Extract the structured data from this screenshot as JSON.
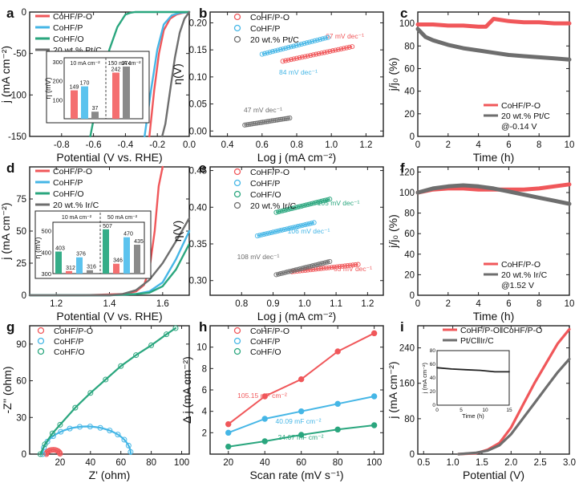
{
  "colors": {
    "red": "#f0575a",
    "blue": "#45b6e6",
    "green": "#2aa67e",
    "gray": "#6e6e6e",
    "axis": "#222222",
    "inset_red": "#f46f70",
    "inset_blue": "#5cc3ee",
    "inset_green": "#35ad88",
    "inset_gray": "#8a8a8a"
  },
  "chart_data": [
    {
      "panel": "a",
      "type": "line",
      "xlabel": "Potential (V vs. RHE)",
      "ylabel": "j (mA cm⁻²)",
      "xlim": [
        -1.0,
        0.0
      ],
      "ylim": [
        -150,
        0
      ],
      "xticks": [
        -0.8,
        -0.6,
        -0.4,
        -0.2,
        0.0
      ],
      "yticks": [
        0,
        -50,
        -100,
        -150
      ],
      "xtick_labels": [
        "-0.8",
        "-0.6",
        "-0.4",
        "-0.2",
        "0.0"
      ],
      "ytick_labels": [
        "0",
        "-50",
        "-100",
        "-150"
      ],
      "legend": [
        "CoHF/P-O",
        "CoHF/P",
        "CoHF/O",
        "20 wt.% Pt/C"
      ],
      "series": [
        {
          "name": "CoHF/P-O",
          "color": "red",
          "x": [
            0.0,
            -0.04,
            -0.08,
            -0.12,
            -0.16,
            -0.19,
            -0.22,
            -0.25
          ],
          "y": [
            0,
            -1,
            -3,
            -8,
            -22,
            -50,
            -95,
            -150
          ]
        },
        {
          "name": "CoHF/P",
          "color": "blue",
          "x": [
            0.0,
            -0.06,
            -0.11,
            -0.16,
            -0.2,
            -0.24,
            -0.28
          ],
          "y": [
            0,
            -1,
            -4,
            -15,
            -45,
            -95,
            -150
          ]
        },
        {
          "name": "CoHF/O",
          "color": "green",
          "x": [
            0.0,
            -0.05,
            -0.1,
            -0.15,
            -0.2,
            -0.25,
            -0.28,
            -0.31,
            -0.34,
            -0.37,
            -0.4,
            -0.45,
            -0.5,
            -0.55,
            -0.6,
            -0.62
          ],
          "y": [
            0,
            0,
            0,
            0,
            0,
            0,
            0,
            0,
            0,
            -1,
            -3,
            -18,
            -45,
            -85,
            -130,
            -150
          ]
        },
        {
          "name": "20 wt.% Pt/C",
          "color": "gray",
          "x": [
            0.0,
            -0.03,
            -0.06,
            -0.09,
            -0.12,
            -0.15,
            -0.17
          ],
          "y": [
            0,
            -8,
            -25,
            -55,
            -95,
            -135,
            -150
          ]
        }
      ],
      "inset": {
        "ylabel": "η (mV)",
        "yticks": [
          0,
          100,
          200,
          300
        ],
        "ytick_labels": [
          "",
          "100",
          "200",
          "300"
        ],
        "ylim": [
          0,
          320
        ],
        "groups": [
          {
            "label": "10 mA cm⁻²",
            "values": [
              149,
              170,
              37
            ],
            "colors": [
              "inset_red",
              "inset_blue",
              "inset_gray"
            ],
            "value_labels": [
              "149",
              "170",
              "37"
            ]
          },
          {
            "label": "150 mA cm⁻²",
            "values": [
              242,
              274
            ],
            "colors": [
              "inset_red",
              "inset_gray"
            ],
            "value_labels": [
              "242",
              "274"
            ]
          }
        ]
      }
    },
    {
      "panel": "b",
      "type": "scatter",
      "xlabel": "Log j (mA cm⁻²)",
      "ylabel": "η(V)",
      "xlim": [
        0.3,
        1.3
      ],
      "ylim": [
        -0.01,
        0.22
      ],
      "xticks": [
        0.4,
        0.6,
        0.8,
        1.0,
        1.2
      ],
      "yticks": [
        0.0,
        0.05,
        0.1,
        0.15,
        0.2
      ],
      "xtick_labels": [
        "0.4",
        "0.6",
        "0.8",
        "1.0",
        "1.2"
      ],
      "ytick_labels": [
        "0.00",
        "0.05",
        "0.10",
        "0.15",
        "0.20"
      ],
      "legend": [
        "CoHF/P-O",
        "CoHF/P",
        "20 wt.% Pt/C"
      ],
      "series": [
        {
          "name": "CoHF/P-O",
          "color": "red",
          "x_range": [
            0.72,
            1.12
          ],
          "y_range": [
            0.129,
            0.156
          ],
          "tafel": "67 mV dec⁻¹"
        },
        {
          "name": "CoHF/P",
          "color": "blue",
          "x_range": [
            0.6,
            0.98
          ],
          "y_range": [
            0.142,
            0.173
          ],
          "tafel": "84 mV dec⁻¹"
        },
        {
          "name": "20 wt.% Pt/C",
          "color": "gray",
          "x_range": [
            0.5,
            0.76
          ],
          "y_range": [
            0.011,
            0.024
          ],
          "tafel": "47 mV dec⁻¹"
        }
      ]
    },
    {
      "panel": "c",
      "type": "line",
      "xlabel": "Time (h)",
      "ylabel": "j/j₀ (%)",
      "xlim": [
        0,
        10
      ],
      "ylim": [
        0,
        110
      ],
      "xticks": [
        0,
        2,
        4,
        6,
        8,
        10
      ],
      "yticks": [
        0,
        20,
        40,
        60,
        80,
        100
      ],
      "xtick_labels": [
        "0",
        "2",
        "4",
        "6",
        "8",
        "10"
      ],
      "ytick_labels": [
        "0",
        "20",
        "40",
        "60",
        "80",
        "100"
      ],
      "legend": [
        "CoHF/P-O",
        "20 wt.% Pt/C"
      ],
      "note": "@-0.14 V",
      "series": [
        {
          "name": "CoHF/P-O",
          "color": "red",
          "x": [
            0,
            1,
            2,
            3,
            4,
            4.5,
            5,
            6,
            7,
            8,
            9,
            10
          ],
          "y": [
            99,
            99,
            98,
            98,
            97,
            97,
            104,
            102,
            101,
            101,
            100,
            100
          ]
        },
        {
          "name": "20 wt.% Pt/C",
          "color": "gray",
          "x": [
            0,
            0.5,
            1,
            2,
            3,
            4,
            5,
            6,
            7,
            8,
            9,
            10
          ],
          "y": [
            95,
            88,
            85,
            81,
            78,
            76,
            74,
            72,
            71,
            70,
            69,
            68
          ]
        }
      ]
    },
    {
      "panel": "d",
      "type": "line",
      "xlabel": "Potential (V vs. RHE)",
      "ylabel": "j (mA cm⁻²)",
      "xlim": [
        1.1,
        1.7
      ],
      "ylim": [
        0,
        100
      ],
      "xticks": [
        1.2,
        1.4,
        1.6
      ],
      "yticks": [
        0,
        25,
        50,
        75
      ],
      "xtick_labels": [
        "1.2",
        "1.4",
        "1.6"
      ],
      "ytick_labels": [
        "0",
        "25",
        "50",
        "75"
      ],
      "legend": [
        "CoHF/P-O",
        "CoHF/P",
        "CoHF/O",
        "20 wt.% Ir/C"
      ],
      "series": [
        {
          "name": "CoHF/P-O",
          "color": "red",
          "x": [
            1.1,
            1.3,
            1.45,
            1.5,
            1.53,
            1.55,
            1.57,
            1.585,
            1.6
          ],
          "y": [
            0,
            0,
            1,
            3,
            8,
            20,
            50,
            85,
            100
          ]
        },
        {
          "name": "CoHF/P",
          "color": "blue",
          "x": [
            1.1,
            1.4,
            1.5,
            1.55,
            1.6,
            1.65,
            1.7
          ],
          "y": [
            0,
            0,
            1,
            3,
            10,
            28,
            50
          ]
        },
        {
          "name": "CoHF/O",
          "color": "green",
          "x": [
            1.1,
            1.4,
            1.5,
            1.55,
            1.6,
            1.65,
            1.7
          ],
          "y": [
            0,
            0,
            1,
            2,
            7,
            20,
            40
          ]
        },
        {
          "name": "20 wt.% Ir/C",
          "color": "gray",
          "x": [
            1.1,
            1.4,
            1.45,
            1.5,
            1.55,
            1.6,
            1.65,
            1.7
          ],
          "y": [
            0,
            0,
            1,
            4,
            12,
            25,
            42,
            60
          ]
        }
      ],
      "inset": {
        "ylabel": "η (mV)",
        "yticks": [
          300,
          400,
          500
        ],
        "ytick_labels": [
          "300",
          "400",
          "500"
        ],
        "ylim": [
          300,
          540
        ],
        "groups": [
          {
            "label": "10 mA cm⁻²",
            "values": [
              403,
              312,
              376,
              316
            ],
            "colors": [
              "inset_green",
              "inset_red",
              "inset_blue",
              "inset_gray"
            ],
            "value_labels": [
              "403",
              "312",
              "376",
              "316"
            ]
          },
          {
            "label": "50 mA cm⁻²",
            "values": [
              507,
              346,
              470,
              435
            ],
            "colors": [
              "inset_green",
              "inset_red",
              "inset_blue",
              "inset_gray"
            ],
            "value_labels": [
              "507",
              "346",
              "470",
              "435"
            ]
          }
        ]
      }
    },
    {
      "panel": "e",
      "type": "scatter",
      "xlabel": "Log j (mA cm⁻²)",
      "ylabel": "η(V)",
      "xlim": [
        0.7,
        1.25
      ],
      "ylim": [
        0.28,
        0.455
      ],
      "xticks": [
        0.8,
        0.9,
        1.0,
        1.1,
        1.2
      ],
      "yticks": [
        0.3,
        0.35,
        0.4,
        0.45
      ],
      "xtick_labels": [
        "0.8",
        "0.9",
        "1.0",
        "1.1",
        "1.2"
      ],
      "ytick_labels": [
        "0.30",
        "0.35",
        "0.40",
        "0.45"
      ],
      "legend": [
        "CoHF/P-O",
        "CoHF/P",
        "CoHF/O",
        "20 wt.% Ir/C"
      ],
      "series": [
        {
          "name": "CoHF/P-O",
          "color": "red",
          "x_range": [
            0.96,
            1.17
          ],
          "y_range": [
            0.312,
            0.322
          ],
          "tafel": "53 mV dec⁻¹"
        },
        {
          "name": "CoHF/P",
          "color": "blue",
          "x_range": [
            0.85,
            1.03
          ],
          "y_range": [
            0.361,
            0.379
          ],
          "tafel": "106 mV dec⁻¹"
        },
        {
          "name": "CoHF/O",
          "color": "green",
          "x_range": [
            0.91,
            1.08
          ],
          "y_range": [
            0.393,
            0.411
          ],
          "tafel": "105 mV dec⁻¹"
        },
        {
          "name": "20 wt.% Ir/C",
          "color": "gray",
          "x_range": [
            0.91,
            1.08
          ],
          "y_range": [
            0.308,
            0.326
          ],
          "tafel": "108 mV dec⁻¹"
        }
      ]
    },
    {
      "panel": "f",
      "type": "line",
      "xlabel": "Time (h)",
      "ylabel": "j/j₀ (%)",
      "xlim": [
        0,
        10
      ],
      "ylim": [
        0,
        125
      ],
      "xticks": [
        0,
        2,
        4,
        6,
        8,
        10
      ],
      "yticks": [
        0,
        20,
        40,
        60,
        80,
        100,
        120
      ],
      "xtick_labels": [
        "0",
        "2",
        "4",
        "6",
        "8",
        "10"
      ],
      "ytick_labels": [
        "0",
        "20",
        "40",
        "60",
        "80",
        "100",
        "120"
      ],
      "legend": [
        "CoHF/P-O",
        "20 wt.% Ir/C"
      ],
      "note": "@1.52 V",
      "series": [
        {
          "name": "CoHF/P-O",
          "color": "red",
          "x": [
            0,
            1,
            2,
            3,
            4,
            5,
            6,
            7,
            8,
            9,
            10
          ],
          "y": [
            100,
            103,
            104,
            104,
            103,
            103,
            103,
            103,
            104,
            106,
            108
          ]
        },
        {
          "name": "20 wt.% Ir/C",
          "color": "gray",
          "x": [
            0,
            1,
            2,
            3,
            4,
            5,
            6,
            7,
            8,
            9,
            10
          ],
          "y": [
            100,
            104,
            106,
            107,
            106,
            104,
            101,
            98,
            95,
            92,
            89
          ]
        }
      ]
    },
    {
      "panel": "g",
      "type": "scatter+line",
      "xlabel": "Z' (ohm)",
      "ylabel": "-Z'' (ohm)",
      "xlim": [
        0,
        105
      ],
      "ylim": [
        0,
        105
      ],
      "xticks": [
        20,
        40,
        60,
        80,
        100
      ],
      "yticks": [
        0,
        30,
        60,
        90
      ],
      "xtick_labels": [
        "20",
        "40",
        "60",
        "80",
        "100"
      ],
      "ytick_labels": [
        "0",
        "30",
        "60",
        "90"
      ],
      "legend": [
        "CoHF/P-O",
        "CoHF/P",
        "CoHF/O"
      ],
      "series": [
        {
          "name": "CoHF/P-O",
          "color": "red",
          "center": 15.5,
          "radius": 4.5
        },
        {
          "name": "CoHF/P",
          "color": "blue",
          "center": 37.5,
          "radius": 29
        },
        {
          "name": "CoHF/O",
          "color": "green",
          "x": [
            7,
            10,
            15,
            20,
            30,
            40,
            50,
            60,
            70,
            80,
            90,
            96
          ],
          "y": [
            0,
            8,
            17,
            24,
            38,
            50,
            61,
            72,
            81,
            89,
            98,
            103
          ]
        }
      ]
    },
    {
      "panel": "h",
      "type": "scatter+fit",
      "xlabel": "Scan rate (mV s⁻¹)",
      "ylabel": "Δ j (mA cm⁻²)",
      "xlim": [
        10,
        105
      ],
      "ylim": [
        0,
        12
      ],
      "xticks": [
        20,
        40,
        60,
        80,
        100
      ],
      "yticks": [
        2,
        4,
        6,
        8,
        10
      ],
      "xtick_labels": [
        "20",
        "40",
        "60",
        "80",
        "100"
      ],
      "ytick_labels": [
        "2",
        "4",
        "6",
        "8",
        "10"
      ],
      "legend": [
        "CoHF/P-O",
        "CoHF/P",
        "CoHF/O"
      ],
      "series": [
        {
          "name": "CoHF/P-O",
          "color": "red",
          "x": [
            20,
            40,
            60,
            80,
            100
          ],
          "y": [
            2.8,
            5.4,
            7.0,
            9.6,
            11.3
          ],
          "annotation": "105.15 mF cm⁻²"
        },
        {
          "name": "CoHF/P",
          "color": "blue",
          "x": [
            20,
            40,
            60,
            80,
            100
          ],
          "y": [
            2.0,
            3.3,
            4.0,
            4.7,
            5.4
          ],
          "annotation": "40.09 mF cm⁻²"
        },
        {
          "name": "CoHF/O",
          "color": "green",
          "x": [
            20,
            40,
            60,
            80,
            100
          ],
          "y": [
            0.7,
            1.2,
            1.8,
            2.3,
            2.7
          ],
          "annotation": "24.67 mF cm⁻²"
        }
      ]
    },
    {
      "panel": "i",
      "type": "line",
      "xlabel": "Potential (V)",
      "ylabel": "j (mA cm⁻²)",
      "xlim": [
        0.4,
        3.0
      ],
      "ylim": [
        0,
        290
      ],
      "xticks": [
        0.5,
        1.0,
        1.5,
        2.0,
        2.5,
        3.0
      ],
      "yticks": [
        0,
        80,
        160,
        240
      ],
      "xtick_labels": [
        "0.5",
        "1.0",
        "1.5",
        "2.0",
        "2.5",
        "3.0"
      ],
      "ytick_labels": [
        "0",
        "80",
        "160",
        "240"
      ],
      "legend": [
        "CoHF/P-O‖CoHF/P-O",
        "Pt/C‖Ir/C"
      ],
      "series": [
        {
          "name": "CoHF/P-O‖CoHF/P-O",
          "color": "red",
          "x": [
            1.1,
            1.4,
            1.6,
            1.8,
            2.0,
            2.2,
            2.4,
            2.6,
            2.8,
            3.0
          ],
          "y": [
            0,
            2,
            10,
            25,
            60,
            110,
            160,
            205,
            250,
            282
          ]
        },
        {
          "name": "Pt/C‖Ir/C",
          "color": "gray",
          "x": [
            1.1,
            1.4,
            1.6,
            1.8,
            2.0,
            2.2,
            2.4,
            2.6,
            2.8,
            3.0
          ],
          "y": [
            0,
            3,
            8,
            20,
            45,
            80,
            115,
            150,
            185,
            215
          ]
        }
      ],
      "inset": {
        "xlabel": "Time (h)",
        "ylabel": "j (mA cm⁻²)",
        "xlim": [
          0,
          15
        ],
        "ylim": [
          0,
          80
        ],
        "xticks": [
          0,
          5,
          10,
          15
        ],
        "yticks": [
          0,
          20,
          40,
          60,
          80
        ],
        "xtick_labels": [
          "0",
          "5",
          "10",
          "15"
        ],
        "ytick_labels": [
          "0",
          "20",
          "40",
          "60",
          "80"
        ],
        "series": [
          {
            "color": "axis",
            "x": [
              0,
              3,
              6,
              9,
              12,
              15
            ],
            "y": [
              55,
              53,
              52,
              51,
              49,
              49
            ]
          }
        ]
      }
    }
  ]
}
